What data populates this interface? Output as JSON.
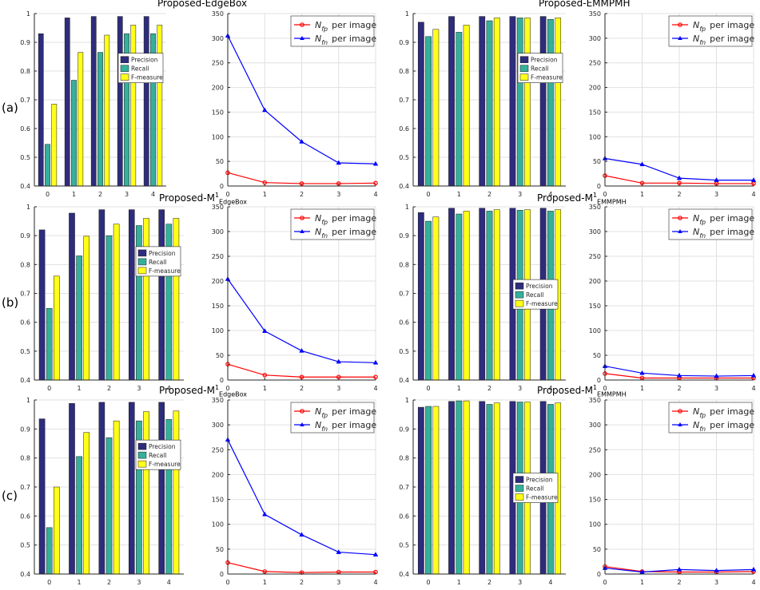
{
  "figure": {
    "row_labels": [
      "(a)",
      "(b)",
      "(c)"
    ],
    "titles": [
      {
        "text": "Proposed-EdgeBox",
        "base": "",
        "sup": "",
        "sub": ""
      },
      {
        "text": "Proposed-EMMPMH",
        "base": "",
        "sup": "",
        "sub": ""
      },
      {
        "text": "",
        "base": "Proposed-M",
        "sup": "1",
        "sub": "EdgeBox"
      },
      {
        "text": "",
        "base": "Proposed-M",
        "sup": "1",
        "sub": "EMMPMH"
      },
      {
        "text": "",
        "base": "Proposed-M",
        "sup": "1",
        "sub": "EdgeBox"
      },
      {
        "text": "",
        "base": "Proposed-M",
        "sup": "1",
        "sub": "EMMPMH"
      }
    ],
    "colors": {
      "precision": "#2e2c7c",
      "recall": "#35b09a",
      "fmeasure": "#ffff1a",
      "nfp": "#ff0000",
      "nfn": "#0000ff",
      "grid": "#e0e0e0",
      "axis": "#262626"
    },
    "legend_bar": [
      "Precision",
      "Recall",
      "F-measure"
    ],
    "legend_line": [
      {
        "sym": "N",
        "sub": "fp",
        "rest": "per image"
      },
      {
        "sym": "N",
        "sub": "fn",
        "rest": "per image"
      }
    ]
  },
  "chart_data": [
    {
      "id": "a-bar",
      "type": "bar",
      "categories": [
        "0",
        "1",
        "2",
        "3",
        "4"
      ],
      "ylim": [
        0.4,
        1
      ],
      "yticks": [
        "0.4",
        "0.5",
        "0.6",
        "0.7",
        "0.8",
        "0.9",
        "1"
      ],
      "legend": "middle-right",
      "series": [
        {
          "name": "Precision",
          "values": [
            0.93,
            0.985,
            0.99,
            0.99,
            0.99
          ]
        },
        {
          "name": "Recall",
          "values": [
            0.545,
            0.768,
            0.865,
            0.93,
            0.93
          ]
        },
        {
          "name": "F-measure",
          "values": [
            0.685,
            0.865,
            0.925,
            0.96,
            0.96
          ]
        }
      ]
    },
    {
      "id": "a-line",
      "type": "line",
      "x": [
        0,
        1,
        2,
        3,
        4
      ],
      "ylim": [
        0,
        350
      ],
      "yticks": [
        "0",
        "50",
        "100",
        "150",
        "200",
        "250",
        "300",
        "350"
      ],
      "legend": "top-right",
      "series": [
        {
          "name": "Nfp per image",
          "values": [
            27,
            7,
            5,
            5,
            6
          ]
        },
        {
          "name": "Nfn per image",
          "values": [
            305,
            154,
            90,
            47,
            45
          ]
        }
      ]
    },
    {
      "id": "a-bar2",
      "type": "bar",
      "categories": [
        "0",
        "1",
        "2",
        "3",
        "4"
      ],
      "ylim": [
        0.4,
        1
      ],
      "yticks": [
        "0.4",
        "0.5",
        "0.6",
        "0.7",
        "0.8",
        "0.9",
        "1"
      ],
      "legend": "middle-right",
      "series": [
        {
          "name": "Precision",
          "values": [
            0.97,
            0.99,
            0.99,
            0.99,
            0.99
          ]
        },
        {
          "name": "Recall",
          "values": [
            0.92,
            0.935,
            0.975,
            0.985,
            0.98
          ]
        },
        {
          "name": "F-measure",
          "values": [
            0.945,
            0.96,
            0.985,
            0.985,
            0.985
          ]
        }
      ]
    },
    {
      "id": "a-line2",
      "type": "line",
      "x": [
        0,
        1,
        2,
        3,
        4
      ],
      "ylim": [
        0,
        350
      ],
      "yticks": [
        "0",
        "50",
        "100",
        "150",
        "200",
        "250",
        "300",
        "350"
      ],
      "legend": "top-right",
      "series": [
        {
          "name": "Nfp per image",
          "values": [
            21,
            6,
            6,
            5,
            5
          ]
        },
        {
          "name": "Nfn per image",
          "values": [
            56,
            44,
            16,
            12,
            12
          ]
        }
      ]
    },
    {
      "id": "b-bar",
      "type": "bar",
      "categories": [
        "0",
        "1",
        "2",
        "3",
        "4"
      ],
      "ylim": [
        0.4,
        1
      ],
      "yticks": [
        "0.4",
        "0.5",
        "0.6",
        "0.7",
        "0.8",
        "0.9",
        "1"
      ],
      "legend": "middle-right",
      "series": [
        {
          "name": "Precision",
          "values": [
            0.92,
            0.978,
            0.99,
            0.99,
            0.99
          ]
        },
        {
          "name": "Recall",
          "values": [
            0.648,
            0.83,
            0.9,
            0.935,
            0.94
          ]
        },
        {
          "name": "F-measure",
          "values": [
            0.76,
            0.898,
            0.94,
            0.96,
            0.96
          ]
        }
      ]
    },
    {
      "id": "b-line",
      "type": "line",
      "x": [
        0,
        1,
        2,
        3,
        4
      ],
      "ylim": [
        0,
        350
      ],
      "yticks": [
        "0",
        "50",
        "100",
        "150",
        "200",
        "250",
        "300",
        "350"
      ],
      "legend": "top-right",
      "series": [
        {
          "name": "Nfp per image",
          "values": [
            32,
            10,
            6,
            6,
            6
          ]
        },
        {
          "name": "Nfn per image",
          "values": [
            204,
            99,
            59,
            37,
            35
          ]
        }
      ]
    },
    {
      "id": "b-bar2",
      "type": "bar",
      "categories": [
        "0",
        "1",
        "2",
        "3",
        "4"
      ],
      "ylim": [
        0.4,
        1
      ],
      "yticks": [
        "0.4",
        "0.5",
        "0.6",
        "0.7",
        "0.8",
        "0.9",
        "1"
      ],
      "legend": "bottom-right",
      "series": [
        {
          "name": "Precision",
          "values": [
            0.98,
            0.995,
            0.995,
            0.995,
            0.995
          ]
        },
        {
          "name": "Recall",
          "values": [
            0.95,
            0.975,
            0.985,
            0.988,
            0.985
          ]
        },
        {
          "name": "F-measure",
          "values": [
            0.965,
            0.985,
            0.99,
            0.99,
            0.99
          ]
        }
      ]
    },
    {
      "id": "b-line2",
      "type": "line",
      "x": [
        0,
        1,
        2,
        3,
        4
      ],
      "ylim": [
        0,
        350
      ],
      "yticks": [
        "0",
        "50",
        "100",
        "150",
        "200",
        "250",
        "300",
        "350"
      ],
      "legend": "top-right",
      "series": [
        {
          "name": "Nfp per image",
          "values": [
            13,
            4,
            4,
            4,
            4
          ]
        },
        {
          "name": "Nfn per image",
          "values": [
            28,
            14,
            9,
            8,
            9
          ]
        }
      ]
    },
    {
      "id": "c-bar",
      "type": "bar",
      "categories": [
        "0",
        "1",
        "2",
        "3",
        "4"
      ],
      "ylim": [
        0.4,
        1
      ],
      "yticks": [
        "0.4",
        "0.5",
        "0.6",
        "0.7",
        "0.8",
        "0.9",
        "1"
      ],
      "legend": "middle-right",
      "series": [
        {
          "name": "Precision",
          "values": [
            0.935,
            0.988,
            0.992,
            0.992,
            0.992
          ]
        },
        {
          "name": "Recall",
          "values": [
            0.56,
            0.805,
            0.87,
            0.928,
            0.933
          ]
        },
        {
          "name": "F-measure",
          "values": [
            0.7,
            0.888,
            0.928,
            0.96,
            0.962
          ]
        }
      ]
    },
    {
      "id": "c-line",
      "type": "line",
      "x": [
        0,
        1,
        2,
        3,
        4
      ],
      "ylim": [
        0,
        350
      ],
      "yticks": [
        "0",
        "50",
        "100",
        "150",
        "200",
        "250",
        "300",
        "350"
      ],
      "legend": "top-right",
      "series": [
        {
          "name": "Nfp per image",
          "values": [
            23,
            5,
            3,
            4,
            4
          ]
        },
        {
          "name": "Nfn per image",
          "values": [
            270,
            120,
            79,
            44,
            39
          ]
        }
      ]
    },
    {
      "id": "c-bar2",
      "type": "bar",
      "categories": [
        "0",
        "1",
        "2",
        "3",
        "4"
      ],
      "ylim": [
        0.4,
        1
      ],
      "yticks": [
        "0.4",
        "0.5",
        "0.6",
        "0.7",
        "0.8",
        "0.9",
        "1"
      ],
      "legend": "bottom-right",
      "series": [
        {
          "name": "Precision",
          "values": [
            0.975,
            0.995,
            0.995,
            0.995,
            0.995
          ]
        },
        {
          "name": "Recall",
          "values": [
            0.978,
            0.997,
            0.985,
            0.993,
            0.985
          ]
        },
        {
          "name": "F-measure",
          "values": [
            0.978,
            0.997,
            0.99,
            0.993,
            0.99
          ]
        }
      ]
    },
    {
      "id": "c-line2",
      "type": "line",
      "x": [
        0,
        1,
        2,
        3,
        4
      ],
      "ylim": [
        0,
        350
      ],
      "yticks": [
        "0",
        "50",
        "100",
        "150",
        "200",
        "250",
        "300",
        "350"
      ],
      "legend": "top-right",
      "series": [
        {
          "name": "Nfp per image",
          "values": [
            15,
            5,
            4,
            4,
            5
          ]
        },
        {
          "name": "Nfn per image",
          "values": [
            12,
            4,
            9,
            7,
            9
          ]
        }
      ]
    }
  ]
}
